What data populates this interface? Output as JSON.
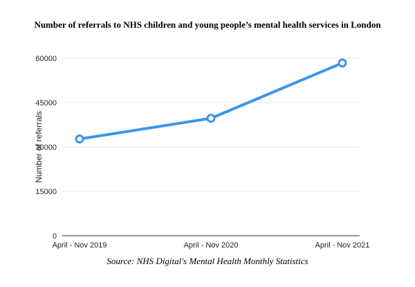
{
  "chart_data": {
    "type": "line",
    "title": "Number of referrals to NHS children and young people’s mental health services in London",
    "xlabel": "",
    "ylabel": "Number of referrals",
    "categories": [
      "April - Nov 2019",
      "April - Nov 2020",
      "April - Nov 2021"
    ],
    "series": [
      {
        "name": "Number of referrals",
        "values": [
          32700,
          39700,
          58400
        ],
        "color": "#3d95ea"
      }
    ],
    "ylim": [
      0,
      60000
    ],
    "yticks": [
      0,
      15000,
      30000,
      45000,
      60000
    ],
    "grid": true,
    "source": "Source: NHS Digital's Mental Health Monthly Statistics"
  }
}
